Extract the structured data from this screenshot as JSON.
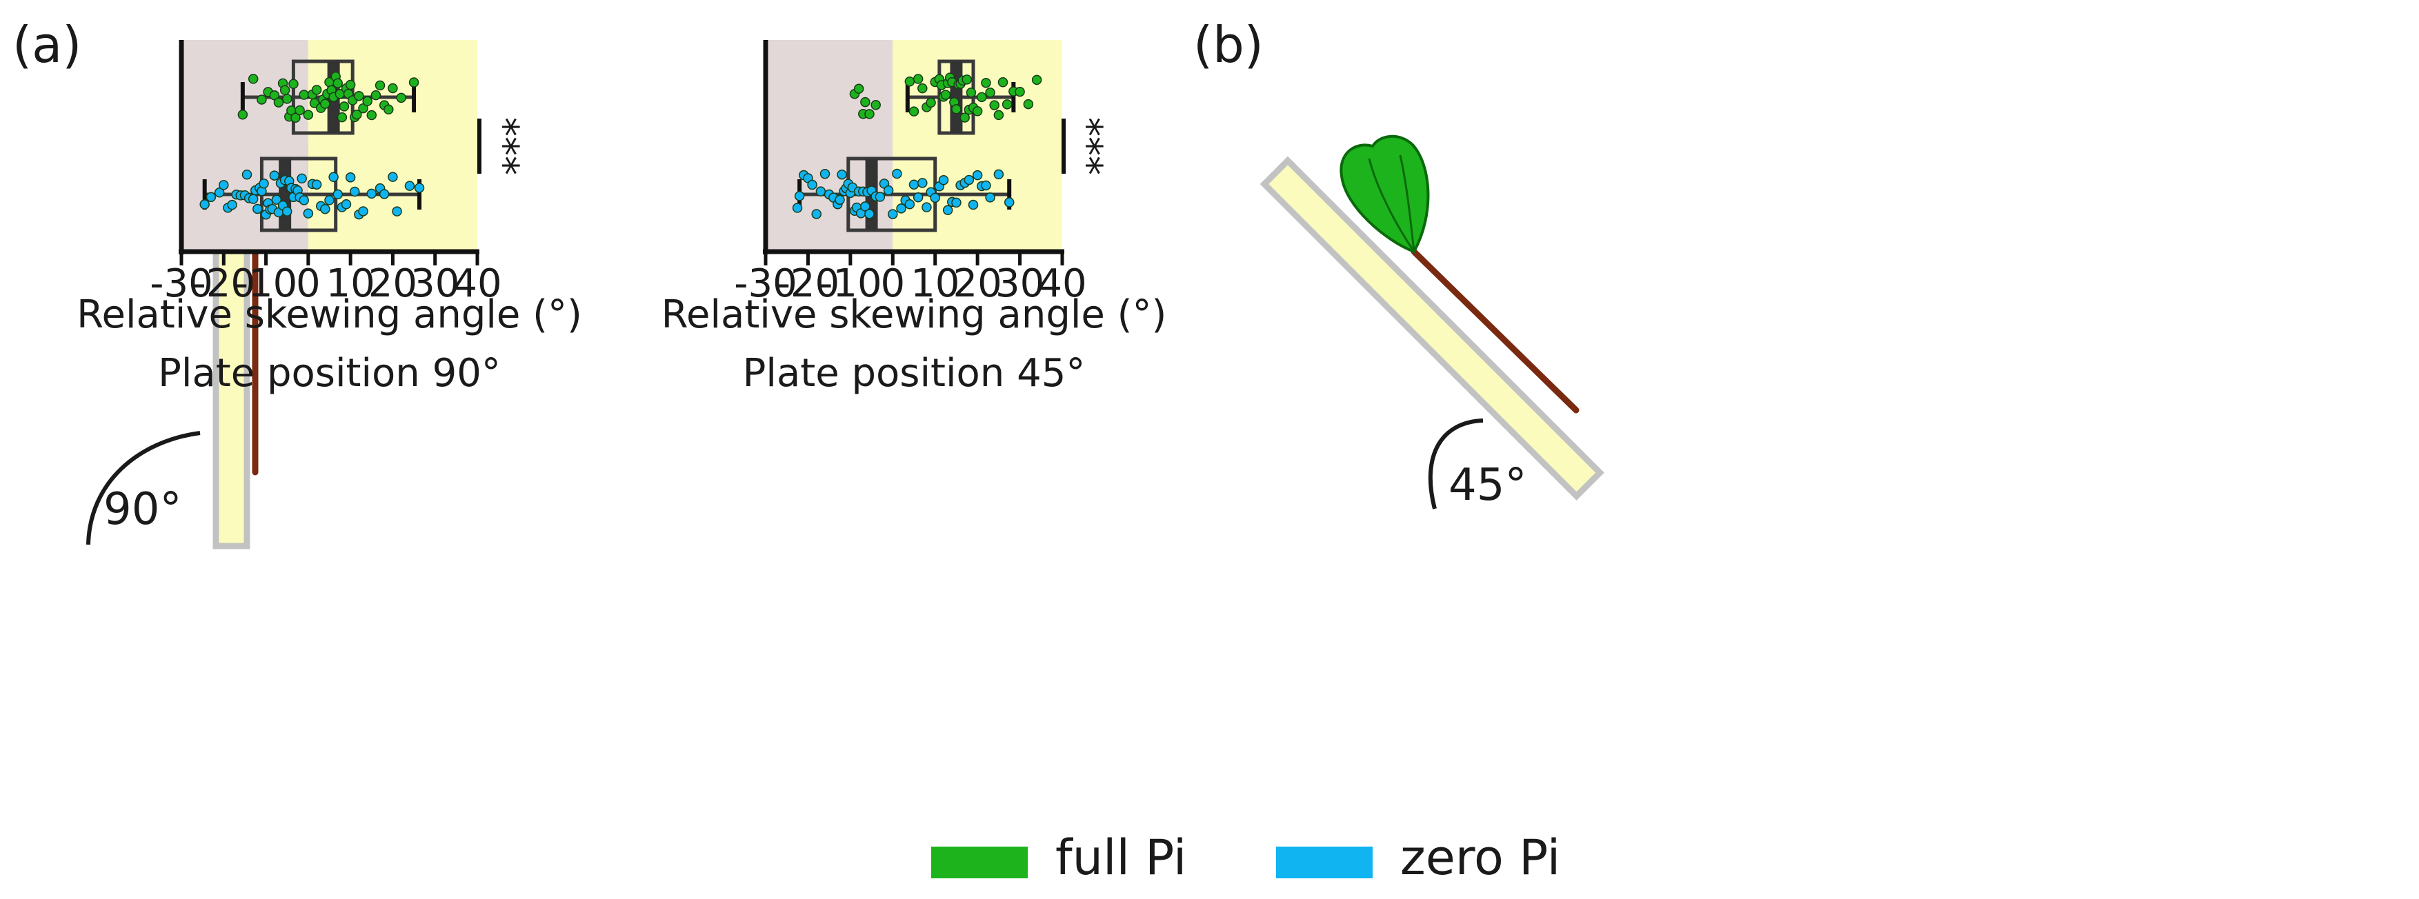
{
  "panels": [
    {
      "letter": "(a)",
      "angle_label": "90°"
    },
    {
      "letter": "(b)",
      "angle_label": "45°"
    }
  ],
  "legend": {
    "items": [
      {
        "label": "full Pi",
        "color": "#1db31d"
      },
      {
        "label": "zero Pi",
        "color": "#0fb4f0"
      }
    ]
  },
  "colors": {
    "negative_region": "#e2d8d8",
    "positive_region": "#fbfbbe",
    "full_pi": "#1db31d",
    "zero_pi": "#0fb4f0",
    "box": "#3a3a3a",
    "plate_fill": "#fbfbbe",
    "plate_border": "#c2c2c2",
    "root": "#7a2a10",
    "leaf": "#1db31d"
  },
  "chart_data": [
    {
      "type": "box",
      "orientation": "horizontal",
      "title": "Plate position 90°",
      "xlabel": "Relative skewing angle (°)",
      "xlim": [
        -30,
        40
      ],
      "xticks": [
        -30,
        -20,
        -10,
        0,
        10,
        20,
        30,
        40
      ],
      "xtick_labels": [
        "-30",
        "-20",
        "-10",
        "0",
        "10",
        "20",
        "30",
        "40"
      ],
      "shaded_regions": [
        {
          "from": -30,
          "to": 0,
          "label": "negative"
        },
        {
          "from": 0,
          "to": 40,
          "label": "positive"
        }
      ],
      "significance": "***",
      "series": [
        {
          "name": "full Pi",
          "min": -15.5,
          "q1": -3.5,
          "median": 6,
          "q3": 10.5,
          "max": 25,
          "points": [
            -15.5,
            -13,
            -11,
            -9.5,
            -8,
            -7,
            -6,
            -5.5,
            -5,
            -4.5,
            -4,
            -3.5,
            -3,
            -2,
            -1,
            0,
            1,
            1.5,
            2,
            3,
            3.5,
            4,
            4.5,
            5,
            5.5,
            6,
            6.5,
            7,
            7.5,
            8,
            8.5,
            9,
            9.5,
            10,
            10.5,
            11,
            11.5,
            12,
            13,
            14,
            15,
            16,
            17,
            18,
            19,
            20,
            22,
            25
          ]
        },
        {
          "name": "zero Pi",
          "min": -24.5,
          "q1": -11,
          "median": -5.5,
          "q3": 6.5,
          "max": 26.3,
          "points": [
            -24.5,
            -23,
            -21,
            -20,
            -19,
            -18,
            -17,
            -16,
            -15,
            -14.5,
            -14,
            -13,
            -12.5,
            -12,
            -11.5,
            -11,
            -10.5,
            -10,
            -9.5,
            -9,
            -8.5,
            -8,
            -7.5,
            -7,
            -6.5,
            -6,
            -5.5,
            -5,
            -4.5,
            -4,
            -3.5,
            -3,
            -2.5,
            -2,
            -1.5,
            -1,
            0,
            1,
            2,
            3,
            4,
            5,
            6,
            7,
            8,
            9,
            10,
            11,
            12,
            13,
            15,
            17,
            18,
            20,
            21,
            24,
            26.3
          ]
        }
      ]
    },
    {
      "type": "box",
      "orientation": "horizontal",
      "title": "Plate position 45°",
      "xlabel": "Relative skewing angle (°)",
      "xlim": [
        -30,
        40
      ],
      "xticks": [
        -30,
        -20,
        -10,
        0,
        10,
        20,
        30,
        40
      ],
      "xtick_labels": [
        "-30",
        "-20",
        "-10",
        "0",
        "10",
        "20",
        "30",
        "40"
      ],
      "shaded_regions": [
        {
          "from": -30,
          "to": 0,
          "label": "negative"
        },
        {
          "from": 0,
          "to": 40,
          "label": "positive"
        }
      ],
      "significance": "***",
      "series": [
        {
          "name": "full Pi",
          "min": 3.5,
          "q1": 11,
          "median": 15,
          "q3": 19,
          "max": 28.5,
          "points": [
            -9,
            -8,
            -7,
            -6.5,
            -5.5,
            -4,
            4,
            5,
            6,
            7,
            8,
            9,
            10,
            11,
            11.5,
            12,
            12.5,
            13,
            13.5,
            14,
            14.5,
            15,
            15.5,
            16,
            16.5,
            17,
            17.5,
            18,
            18.5,
            19,
            20,
            21,
            22,
            23,
            24,
            25,
            26,
            27,
            28.5,
            30,
            32,
            34
          ]
        },
        {
          "name": "zero Pi",
          "min": -22,
          "q1": -10.5,
          "median": -5,
          "q3": 10,
          "max": 27.5,
          "points": [
            -22.5,
            -22,
            -21,
            -20,
            -19,
            -18,
            -17,
            -16,
            -15,
            -14,
            -13,
            -12.5,
            -12,
            -11.5,
            -11,
            -10.5,
            -10,
            -9.5,
            -9,
            -8.5,
            -8,
            -7.5,
            -7,
            -6.5,
            -6,
            -5.5,
            -5,
            -4,
            -3,
            -2,
            -1,
            0,
            1,
            2,
            3,
            4,
            5,
            6,
            7,
            8,
            9,
            10,
            11,
            12,
            13,
            14,
            15,
            16,
            17,
            18,
            19,
            20,
            21,
            22,
            23,
            25,
            27.5
          ]
        }
      ]
    }
  ]
}
